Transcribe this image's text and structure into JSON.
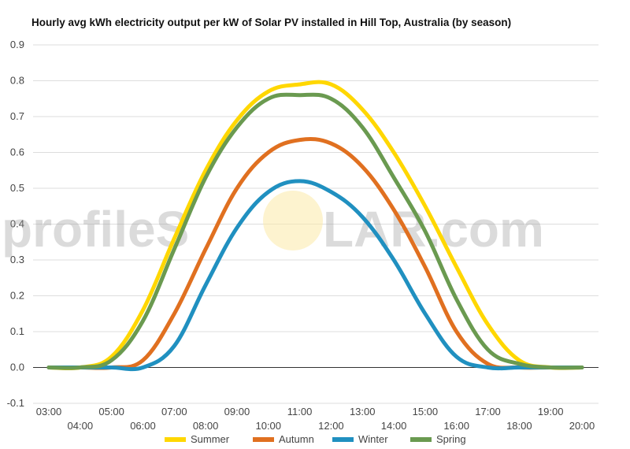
{
  "watermark": {
    "text_left": "profileS",
    "text_right": "LAR.com"
  },
  "chart_data": {
    "type": "line",
    "title": "Hourly avg kWh electricity output per kW of Solar PV installed in Hill Top, Australia (by season)",
    "xlabel": "",
    "ylabel": "",
    "ylim": [
      -0.1,
      0.9
    ],
    "yticks": [
      "0.9",
      "0.8",
      "0.7",
      "0.6",
      "0.5",
      "0.4",
      "0.3",
      "0.2",
      "0.1",
      "0.0",
      "-0.1"
    ],
    "xticks_top": [
      "03:00",
      "05:00",
      "07:00",
      "09:00",
      "11:00",
      "13:00",
      "15:00",
      "17:00",
      "19:00"
    ],
    "xticks_bottom": [
      "04:00",
      "06:00",
      "08:00",
      "10:00",
      "12:00",
      "14:00",
      "16:00",
      "18:00",
      "20:00"
    ],
    "x": [
      "03:00",
      "04:00",
      "05:00",
      "06:00",
      "07:00",
      "08:00",
      "09:00",
      "10:00",
      "11:00",
      "12:00",
      "13:00",
      "14:00",
      "15:00",
      "16:00",
      "17:00",
      "18:00",
      "19:00",
      "20:00"
    ],
    "grid": true,
    "legend_position": "bottom",
    "series": [
      {
        "name": "Summer",
        "color": "#FFD700",
        "values": [
          0.0,
          0.0,
          0.03,
          0.16,
          0.36,
          0.55,
          0.69,
          0.77,
          0.79,
          0.79,
          0.72,
          0.6,
          0.45,
          0.28,
          0.12,
          0.02,
          0.0,
          0.0
        ]
      },
      {
        "name": "Autumn",
        "color": "#E07020",
        "values": [
          0.0,
          0.0,
          0.0,
          0.02,
          0.15,
          0.33,
          0.5,
          0.6,
          0.635,
          0.625,
          0.56,
          0.44,
          0.28,
          0.1,
          0.01,
          0.0,
          0.0,
          0.0
        ]
      },
      {
        "name": "Winter",
        "color": "#2090C0",
        "values": [
          0.0,
          0.0,
          0.0,
          0.0,
          0.06,
          0.23,
          0.39,
          0.49,
          0.52,
          0.49,
          0.42,
          0.3,
          0.15,
          0.03,
          0.0,
          0.0,
          0.0,
          0.0
        ]
      },
      {
        "name": "Spring",
        "color": "#6A9A50",
        "values": [
          0.0,
          0.0,
          0.02,
          0.13,
          0.33,
          0.53,
          0.67,
          0.75,
          0.76,
          0.75,
          0.67,
          0.53,
          0.38,
          0.19,
          0.05,
          0.01,
          0.0,
          0.0
        ]
      }
    ]
  }
}
